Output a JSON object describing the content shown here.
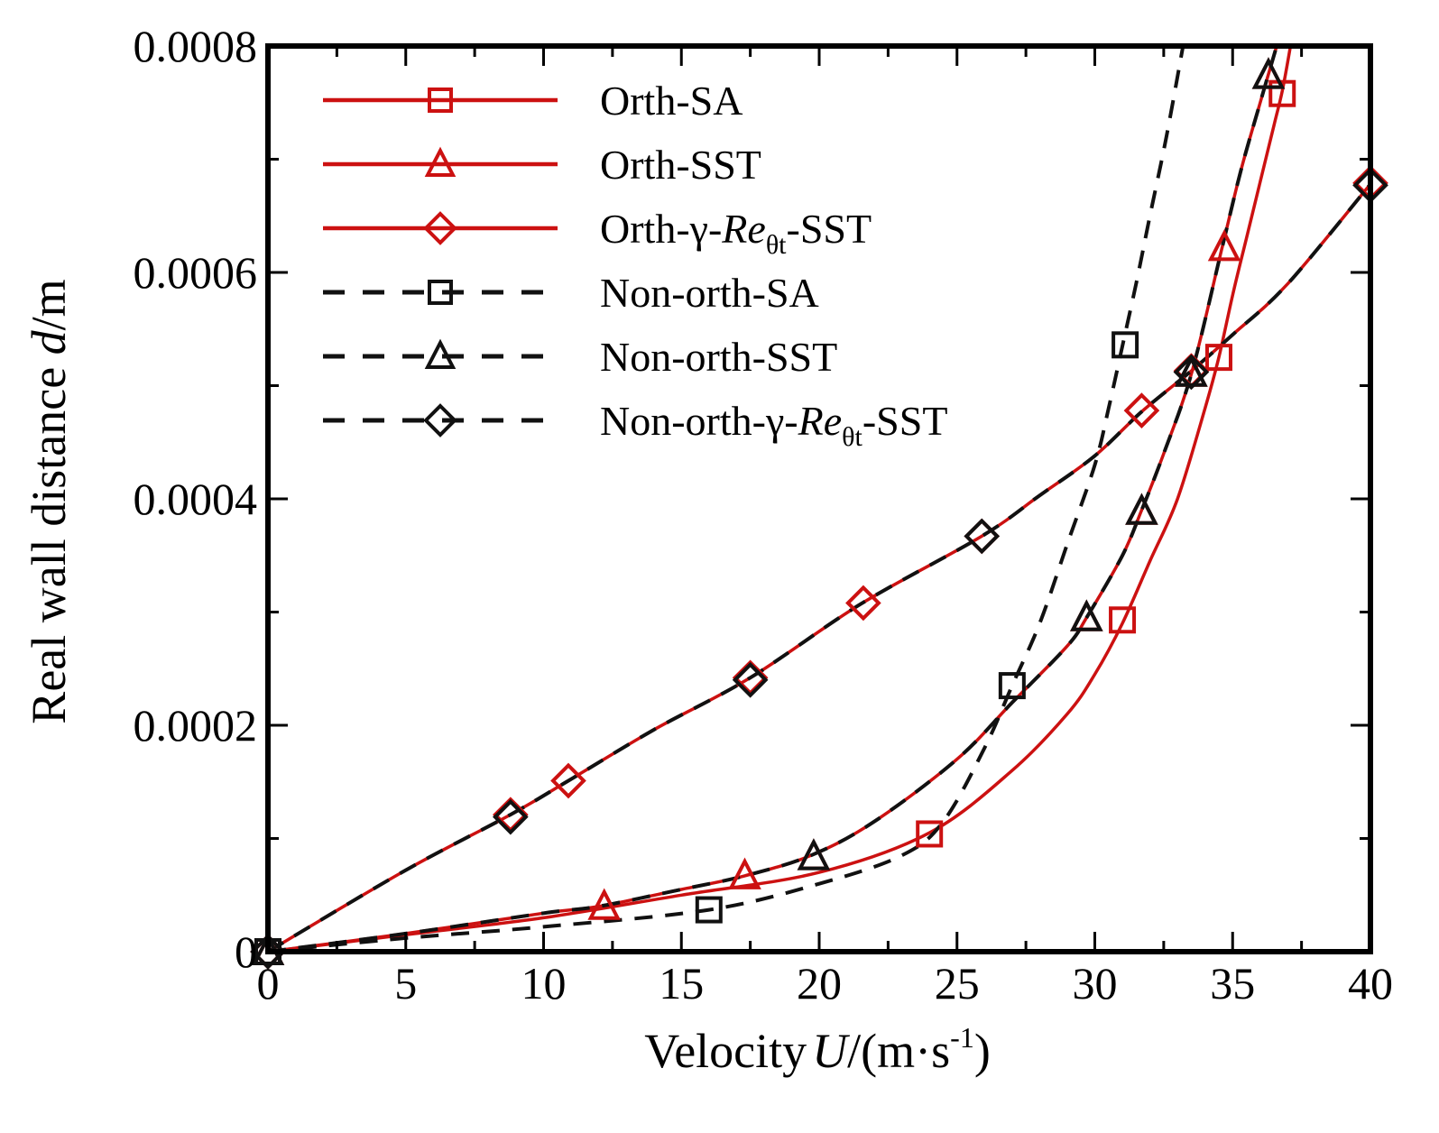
{
  "chart_data": {
    "type": "line",
    "xlabel": {
      "main": "Velocity",
      "italic": "U",
      "unit": "/(m·s",
      "sup": "-1",
      "close": ")"
    },
    "ylabel": {
      "main": "Real wall distance ",
      "italic": "d",
      "unit": "/m"
    },
    "xlim": [
      0,
      40
    ],
    "ylim": [
      0,
      0.0008
    ],
    "xticks": [
      0,
      5,
      10,
      15,
      20,
      25,
      30,
      35,
      40
    ],
    "xtick_labels": [
      "0",
      "5",
      "10",
      "15",
      "20",
      "25",
      "30",
      "35",
      "40"
    ],
    "yticks": [
      0,
      0.0002,
      0.0004,
      0.0006,
      0.0008
    ],
    "ytick_labels": [
      "0",
      "0.0002",
      "0.0004",
      "0.0006",
      "0.0008"
    ],
    "legend_position": "top-left",
    "colors": {
      "orth": "#cc1111",
      "nonorth": "#111111"
    },
    "series": [
      {
        "name": "Orth-SA",
        "label": {
          "pre": "Orth-SA",
          "italic": "",
          "sub": "",
          "post": ""
        },
        "style": "solid",
        "color": "#cc1111",
        "marker": "square",
        "x": [
          0,
          5,
          10,
          15,
          20,
          24,
          27,
          29,
          30,
          31,
          32,
          33,
          34,
          34.5,
          35,
          35.5,
          36,
          36.5,
          36.8,
          37.1
        ],
        "y": [
          0,
          1.5e-05,
          3e-05,
          5e-05,
          7e-05,
          0.000105,
          0.00016,
          0.00021,
          0.000245,
          0.00029,
          0.000345,
          0.0004,
          0.00048,
          0.000525,
          0.00058,
          0.00063,
          0.00068,
          0.00073,
          0.00076,
          0.0008
        ],
        "markers_x": [
          0,
          24,
          31,
          34.5,
          36.8
        ],
        "markers_y": [
          0,
          0.000104,
          0.000293,
          0.000525,
          0.000758
        ]
      },
      {
        "name": "Orth-SST",
        "label": {
          "pre": "Orth-SST",
          "italic": "",
          "sub": "",
          "post": ""
        },
        "style": "solid",
        "color": "#cc1111",
        "marker": "triangle",
        "x": [
          0,
          5,
          10,
          12,
          15,
          17.3,
          19.7,
          22,
          25,
          27,
          29,
          29.7,
          31,
          31.7,
          32.5,
          33.5,
          34.6,
          35.3,
          36,
          36.6
        ],
        "y": [
          0,
          1.6e-05,
          3.4e-05,
          4e-05,
          5.5e-05,
          6.7e-05,
          8.5e-05,
          0.000115,
          0.00017,
          0.00022,
          0.00027,
          0.000295,
          0.00035,
          0.00039,
          0.00044,
          0.00051,
          0.00062,
          0.00069,
          0.00075,
          0.0008
        ],
        "markers_x": [
          0,
          12.2,
          17.3,
          19.8,
          29.7,
          31.7,
          33.5,
          34.7,
          36.3
        ],
        "markers_y": [
          0,
          4e-05,
          6.7e-05,
          8.4e-05,
          0.000295,
          0.000389,
          0.000511,
          0.000622,
          0.000774
        ]
      },
      {
        "name": "Orth-γ-Reθt-SST",
        "label": {
          "pre": "Orth-γ-",
          "italic": "Re",
          "sub": "θt",
          "post": "-SST"
        },
        "style": "solid",
        "color": "#cc1111",
        "marker": "diamond",
        "x": [
          0,
          5,
          8.8,
          10.9,
          14,
          17.5,
          21.5,
          25.9,
          28,
          30,
          31.7,
          33.5,
          35,
          37,
          40
        ],
        "y": [
          0,
          7.2e-05,
          0.000121,
          0.000151,
          0.000196,
          0.000242,
          0.000307,
          0.000367,
          0.000403,
          0.000438,
          0.000477,
          0.000513,
          0.000545,
          0.00059,
          0.000678
        ],
        "markers_x": [
          0,
          8.8,
          10.9,
          17.5,
          21.6,
          25.9,
          31.7,
          33.5,
          40
        ],
        "markers_y": [
          0,
          0.000121,
          0.000151,
          0.000242,
          0.000308,
          0.000367,
          0.000478,
          0.000513,
          0.000679
        ]
      },
      {
        "name": "Non-orth-SA",
        "label": {
          "pre": "Non-orth-SA",
          "italic": "",
          "sub": "",
          "post": ""
        },
        "style": "dashed",
        "color": "#111111",
        "marker": "square",
        "x": [
          0,
          5,
          10,
          16,
          20,
          23,
          24.5,
          26,
          27,
          28,
          29,
          30,
          30.5,
          31,
          31.5,
          32,
          32.6,
          33.2
        ],
        "y": [
          0,
          1.2e-05,
          2.2e-05,
          3.7e-05,
          6e-05,
          8.5e-05,
          0.000115,
          0.00018,
          0.000235,
          0.00029,
          0.00036,
          0.00043,
          0.00048,
          0.000535,
          0.00059,
          0.00065,
          0.00072,
          0.0008
        ],
        "markers_x": [
          0,
          16,
          27,
          31.1
        ],
        "markers_y": [
          0,
          3.7e-05,
          0.000235,
          0.000536
        ]
      },
      {
        "name": "Non-orth-SST",
        "label": {
          "pre": "Non-orth-SST",
          "italic": "",
          "sub": "",
          "post": ""
        },
        "style": "dashed",
        "color": "#111111",
        "marker": "triangle",
        "x": [
          0,
          5,
          10,
          12,
          15,
          17.3,
          19.7,
          22,
          25,
          27,
          29,
          29.7,
          31,
          31.7,
          32.5,
          33.5,
          34.6,
          35.3,
          36,
          36.6
        ],
        "y": [
          0,
          1.6e-05,
          3.4e-05,
          4e-05,
          5.5e-05,
          6.7e-05,
          8.5e-05,
          0.000115,
          0.00017,
          0.00022,
          0.00027,
          0.000295,
          0.00035,
          0.00039,
          0.00044,
          0.00051,
          0.00062,
          0.00069,
          0.00075,
          0.0008
        ],
        "markers_x": [
          0,
          19.8,
          29.7,
          31.7,
          33.5,
          36.3
        ],
        "markers_y": [
          0,
          8.4e-05,
          0.000295,
          0.000389,
          0.000511,
          0.000774
        ]
      },
      {
        "name": "Non-orth-γ-Reθt-SST",
        "label": {
          "pre": "Non-orth-γ-",
          "italic": "Re",
          "sub": "θt",
          "post": "-SST"
        },
        "style": "dashed",
        "color": "#111111",
        "marker": "diamond",
        "x": [
          0,
          5,
          8.8,
          10.9,
          14,
          17.5,
          21.5,
          25.9,
          28,
          30,
          31.7,
          33.5,
          35,
          37,
          40
        ],
        "y": [
          0,
          7.2e-05,
          0.000121,
          0.000151,
          0.000196,
          0.000242,
          0.000307,
          0.000367,
          0.000403,
          0.000438,
          0.000477,
          0.000513,
          0.000545,
          0.00059,
          0.000678
        ],
        "markers_x": [
          0,
          8.8,
          17.5,
          25.9,
          33.5,
          40
        ],
        "markers_y": [
          0,
          0.000119,
          0.00024,
          0.000367,
          0.000512,
          0.000677
        ]
      }
    ]
  }
}
